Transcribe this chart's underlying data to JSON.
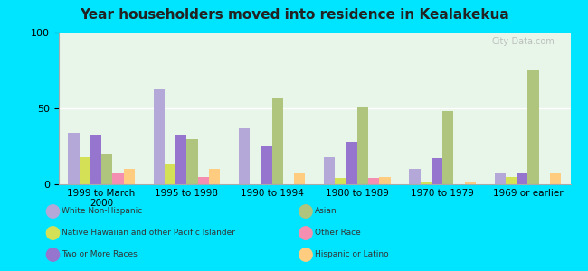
{
  "title": "Year householders moved into residence in Kealakekua",
  "categories": [
    "1999 to March\n2000",
    "1995 to 1998",
    "1990 to 1994",
    "1980 to 1989",
    "1970 to 1979",
    "1969 or earlier"
  ],
  "series": {
    "White Non-Hispanic": [
      34,
      63,
      37,
      18,
      10,
      8
    ],
    "Native Hawaiian and other Pacific Islander": [
      18,
      13,
      0,
      4,
      2,
      5
    ],
    "Two or More Races": [
      33,
      32,
      25,
      28,
      17,
      8
    ],
    "Asian": [
      20,
      30,
      57,
      51,
      48,
      75
    ],
    "Other Race": [
      7,
      5,
      0,
      4,
      0,
      0
    ],
    "Hispanic or Latino": [
      10,
      10,
      7,
      5,
      2,
      7
    ]
  },
  "colors": {
    "White Non-Hispanic": "#b3a8d8",
    "Native Hawaiian and other Pacific Islander": "#d4e157",
    "Two or More Races": "#9575cd",
    "Asian": "#afc47d",
    "Other Race": "#f48fb1",
    "Hispanic or Latino": "#ffcc80"
  },
  "ylim": [
    0,
    100
  ],
  "yticks": [
    0,
    50,
    100
  ],
  "background_color": "#e8f5e9",
  "outer_background": "#00e5ff",
  "watermark": "City-Data.com"
}
